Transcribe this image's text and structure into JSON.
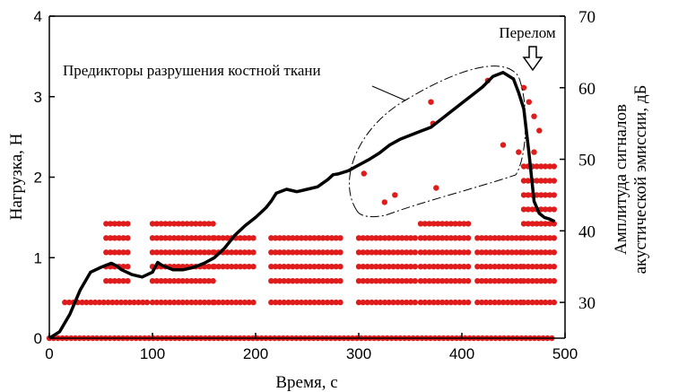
{
  "chart_data": {
    "type": "line",
    "xlabel": "Время, с",
    "ylabel_left": "Нагрузка, Н",
    "ylabel_right_lines": [
      "Амплитуда сигналов",
      "акустической эмиссии, дБ"
    ],
    "xlim": [
      0,
      500
    ],
    "ylim_left": [
      0,
      4
    ],
    "ylim_right": [
      25,
      70
    ],
    "x_ticks": [
      0,
      100,
      200,
      300,
      400,
      500
    ],
    "y_ticks_left": [
      0,
      1,
      2,
      3,
      4
    ],
    "y_ticks_right": [
      30,
      40,
      50,
      60,
      70
    ],
    "grid": false,
    "annotations": {
      "predictors": "Предикторы разрушения костной ткани",
      "fracture": "Перелом"
    },
    "load_series": {
      "x": [
        0,
        10,
        20,
        30,
        40,
        50,
        60,
        65,
        70,
        80,
        90,
        100,
        105,
        110,
        120,
        130,
        140,
        150,
        160,
        170,
        180,
        190,
        200,
        210,
        215,
        220,
        230,
        240,
        250,
        260,
        270,
        275,
        280,
        290,
        300,
        310,
        320,
        330,
        340,
        350,
        360,
        370,
        380,
        390,
        400,
        410,
        420,
        430,
        440,
        450,
        455,
        460,
        465,
        470,
        475,
        480,
        485,
        490
      ],
      "y": [
        0.0,
        0.08,
        0.3,
        0.6,
        0.82,
        0.88,
        0.93,
        0.9,
        0.85,
        0.79,
        0.76,
        0.82,
        0.94,
        0.9,
        0.85,
        0.85,
        0.88,
        0.93,
        1.0,
        1.12,
        1.28,
        1.4,
        1.5,
        1.62,
        1.7,
        1.8,
        1.85,
        1.82,
        1.85,
        1.88,
        1.97,
        2.03,
        2.04,
        2.08,
        2.15,
        2.22,
        2.3,
        2.4,
        2.47,
        2.52,
        2.57,
        2.62,
        2.72,
        2.82,
        2.92,
        3.02,
        3.12,
        3.25,
        3.3,
        3.22,
        3.05,
        2.85,
        2.3,
        1.7,
        1.55,
        1.5,
        1.48,
        1.45
      ]
    },
    "ae_series": {
      "levels_db": [
        25,
        30,
        33,
        35,
        37,
        39,
        41,
        43,
        45,
        47,
        49
      ],
      "bands": [
        {
          "x": [
            0,
            490
          ],
          "levels": [
            25
          ]
        },
        {
          "x": [
            15,
            95
          ],
          "levels": [
            30
          ]
        },
        {
          "x": [
            55,
            80
          ],
          "levels": [
            33,
            35,
            37,
            39,
            41
          ]
        },
        {
          "x": [
            100,
            160
          ],
          "levels": [
            30,
            33,
            35,
            37,
            39,
            41
          ]
        },
        {
          "x": [
            160,
            200
          ],
          "levels": [
            30,
            35,
            37,
            39
          ]
        },
        {
          "x": [
            215,
            285
          ],
          "levels": [
            30,
            33,
            35,
            37,
            39
          ]
        },
        {
          "x": [
            300,
            355
          ],
          "levels": [
            30,
            33,
            35,
            37,
            39
          ]
        },
        {
          "x": [
            360,
            410
          ],
          "levels": [
            30,
            33,
            35,
            37,
            39,
            41
          ]
        },
        {
          "x": [
            415,
            460
          ],
          "levels": [
            30,
            33,
            35,
            37,
            39
          ]
        },
        {
          "x": [
            460,
            490
          ],
          "levels": [
            30,
            33,
            35,
            37,
            39,
            41,
            43,
            45,
            47,
            49
          ]
        }
      ],
      "extra_points": [
        {
          "x": 305,
          "db": 48
        },
        {
          "x": 325,
          "db": 44
        },
        {
          "x": 335,
          "db": 45
        },
        {
          "x": 370,
          "db": 58
        },
        {
          "x": 372,
          "db": 55
        },
        {
          "x": 375,
          "db": 46
        },
        {
          "x": 425,
          "db": 61
        },
        {
          "x": 440,
          "db": 52
        },
        {
          "x": 455,
          "db": 51
        },
        {
          "x": 460,
          "db": 60
        },
        {
          "x": 465,
          "db": 58
        },
        {
          "x": 470,
          "db": 56
        },
        {
          "x": 475,
          "db": 54
        },
        {
          "x": 470,
          "db": 51
        }
      ]
    }
  }
}
